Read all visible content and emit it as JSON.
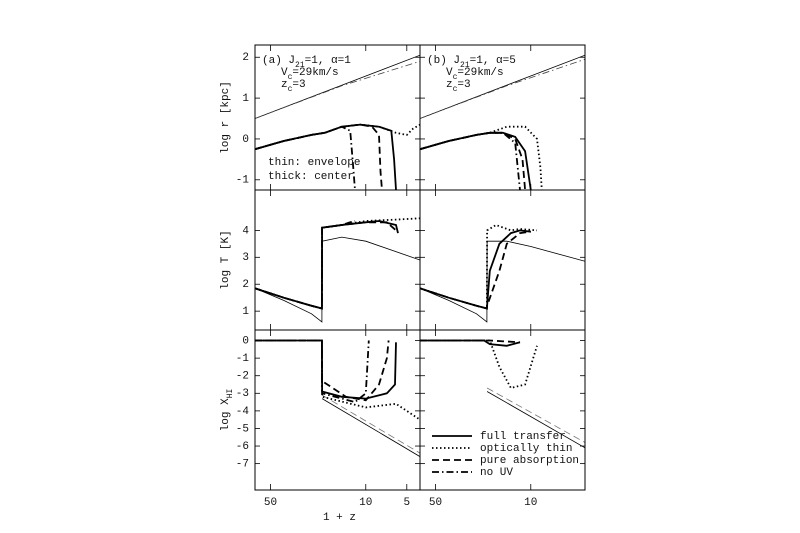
{
  "chart_data": [
    {
      "type": "line",
      "xscale": "log",
      "xlim": [
        65,
        4
      ],
      "ylim": [
        -1.25,
        2.3
      ],
      "yticks": [
        -1,
        0,
        1,
        2
      ],
      "ylabel": [
        "log r [kpc]"
      ],
      "annotations": [
        [
          "(a) J",
          {
            "sub": "21"
          },
          "=1, α=1"
        ],
        [
          "V",
          {
            "sub": "c"
          },
          "=29km/s"
        ],
        [
          "z",
          {
            "sub": "c"
          },
          "=3"
        ]
      ],
      "notes": [
        "thin: envelope",
        "thick: center"
      ],
      "series": [
        {
          "dash": "solid",
          "weight": "thin",
          "color": "#000000",
          "x": [
            65,
            4
          ],
          "values": [
            0.5,
            2.05
          ]
        },
        {
          "dash": "dashdot",
          "weight": "thin",
          "color": "#444444",
          "x": [
            65,
            15,
            4
          ],
          "values": [
            0.5,
            1.3,
            1.9
          ]
        },
        {
          "dash": "dotted",
          "weight": "thick",
          "color": "#000000",
          "x": [
            65,
            40,
            25,
            20,
            15,
            11,
            8,
            6,
            5,
            4.5,
            4
          ],
          "values": [
            -0.25,
            -0.05,
            0.1,
            0.15,
            0.3,
            0.35,
            0.3,
            0.15,
            0.1,
            0.25,
            0.35
          ]
        },
        {
          "dash": "dashed",
          "weight": "thick",
          "color": "#000000",
          "x": [
            65,
            40,
            25,
            20,
            15,
            11,
            9,
            8,
            7.8,
            7.6
          ],
          "values": [
            -0.25,
            -0.05,
            0.1,
            0.15,
            0.3,
            0.35,
            0.3,
            0.1,
            -0.8,
            -1.25
          ]
        },
        {
          "dash": "dashdot",
          "weight": "thick",
          "color": "#000000",
          "x": [
            65,
            40,
            25,
            20,
            15,
            13,
            12.5,
            12
          ],
          "values": [
            -0.25,
            -0.05,
            0.1,
            0.15,
            0.3,
            0.2,
            -0.5,
            -1.25
          ]
        },
        {
          "dash": "solid",
          "weight": "thick",
          "color": "#000000",
          "x": [
            65,
            40,
            25,
            20,
            15,
            11,
            8,
            6.5,
            6.2,
            6.0
          ],
          "values": [
            -0.25,
            -0.05,
            0.1,
            0.15,
            0.3,
            0.35,
            0.3,
            0.2,
            -0.5,
            -1.25
          ]
        }
      ]
    },
    {
      "type": "line",
      "xscale": "log",
      "xlim": [
        65,
        4
      ],
      "ylim": [
        -1.25,
        2.3
      ],
      "annotations": [
        [
          "(b) J",
          {
            "sub": "21"
          },
          "=1, α=5"
        ],
        [
          "V",
          {
            "sub": "c"
          },
          "=29km/s"
        ],
        [
          "z",
          {
            "sub": "c"
          },
          "=3"
        ]
      ],
      "series": [
        {
          "dash": "solid",
          "weight": "thin",
          "color": "#000000",
          "x": [
            65,
            4
          ],
          "values": [
            0.5,
            2.05
          ]
        },
        {
          "dash": "dashdot",
          "weight": "thin",
          "color": "#444444",
          "x": [
            65,
            15,
            4
          ],
          "values": [
            0.5,
            1.3,
            1.95
          ]
        },
        {
          "dash": "dotted",
          "weight": "thick",
          "color": "#000000",
          "x": [
            65,
            40,
            25,
            20,
            15,
            11,
            9,
            8.5,
            8.3
          ],
          "values": [
            -0.25,
            -0.05,
            0.1,
            0.15,
            0.3,
            0.3,
            0.0,
            -0.7,
            -1.25
          ]
        },
        {
          "dash": "dashed",
          "weight": "thick",
          "color": "#000000",
          "x": [
            65,
            40,
            25,
            20,
            16,
            13,
            11.5,
            11
          ],
          "values": [
            -0.25,
            -0.05,
            0.1,
            0.15,
            0.15,
            0.0,
            -0.5,
            -1.25
          ]
        },
        {
          "dash": "dashdot",
          "weight": "thick",
          "color": "#000000",
          "x": [
            65,
            40,
            25,
            20,
            16,
            13,
            12
          ],
          "values": [
            -0.25,
            -0.05,
            0.1,
            0.15,
            0.15,
            -0.1,
            -1.25
          ]
        },
        {
          "dash": "solid",
          "weight": "thick",
          "color": "#000000",
          "x": [
            65,
            40,
            25,
            20,
            16,
            13,
            11,
            10
          ],
          "values": [
            -0.25,
            -0.05,
            0.1,
            0.15,
            0.15,
            0.05,
            -0.3,
            -1.25
          ]
        }
      ]
    },
    {
      "type": "line",
      "xscale": "log",
      "xlim": [
        65,
        4
      ],
      "ylim": [
        0.3,
        5.5
      ],
      "yticks": [
        1,
        2,
        3,
        4
      ],
      "ylabel": [
        "log T [K]"
      ],
      "series": [
        {
          "dash": "solid",
          "weight": "thin",
          "color": "#000000",
          "x": [
            65,
            40,
            25,
            21,
            20.9,
            15,
            10,
            4
          ],
          "values": [
            1.85,
            1.4,
            0.9,
            0.6,
            3.6,
            3.75,
            3.6,
            2.9
          ]
        },
        {
          "dash": "dotted",
          "weight": "thick",
          "color": "#000000",
          "x": [
            65,
            40,
            25,
            21,
            20.9,
            15,
            10,
            6,
            4
          ],
          "values": [
            1.85,
            1.5,
            1.2,
            1.1,
            4.1,
            4.2,
            4.35,
            4.4,
            4.45
          ]
        },
        {
          "dash": "dashed",
          "weight": "thick",
          "color": "#000000",
          "x": [
            65,
            40,
            25,
            21,
            20.9,
            15,
            10,
            7,
            6
          ],
          "values": [
            1.85,
            1.5,
            1.2,
            1.1,
            4.1,
            4.2,
            4.3,
            4.3,
            4.0
          ]
        },
        {
          "dash": "dashdot",
          "weight": "thick",
          "color": "#000000",
          "x": [
            65,
            40,
            25,
            21,
            20.9,
            15,
            13,
            12
          ],
          "values": [
            1.85,
            1.5,
            1.2,
            1.1,
            4.1,
            4.2,
            4.3,
            4.35
          ]
        },
        {
          "dash": "solid",
          "weight": "thick",
          "color": "#000000",
          "x": [
            65,
            40,
            25,
            21,
            20.9,
            15,
            10,
            8,
            6,
            5.8
          ],
          "values": [
            1.85,
            1.5,
            1.2,
            1.1,
            4.1,
            4.2,
            4.3,
            4.35,
            4.2,
            3.9
          ]
        }
      ]
    },
    {
      "type": "line",
      "xscale": "log",
      "xlim": [
        65,
        4
      ],
      "ylim": [
        0.3,
        5.5
      ],
      "series": [
        {
          "dash": "solid",
          "weight": "thin",
          "color": "#000000",
          "x": [
            65,
            40,
            25,
            21,
            20.9,
            15,
            10,
            4
          ],
          "values": [
            1.85,
            1.4,
            0.9,
            0.6,
            3.6,
            3.6,
            3.4,
            2.85
          ]
        },
        {
          "dash": "dotted",
          "weight": "thick",
          "color": "#000000",
          "x": [
            65,
            40,
            25,
            21,
            20.9,
            18,
            14,
            12,
            9
          ],
          "values": [
            1.85,
            1.5,
            1.2,
            1.1,
            4.0,
            4.2,
            4.0,
            4.05,
            4.0
          ]
        },
        {
          "dash": "dashed",
          "weight": "thick",
          "color": "#000000",
          "x": [
            65,
            40,
            25,
            21,
            20.9,
            17,
            15,
            12,
            10
          ],
          "values": [
            1.85,
            1.5,
            1.2,
            1.1,
            1.2,
            2.5,
            3.5,
            3.9,
            3.95
          ]
        },
        {
          "dash": "solid",
          "weight": "thick",
          "color": "#000000",
          "x": [
            65,
            40,
            25,
            21,
            20,
            17,
            14,
            12,
            10
          ],
          "values": [
            1.85,
            1.5,
            1.2,
            1.1,
            2.5,
            3.5,
            3.9,
            4.0,
            3.95
          ]
        }
      ]
    },
    {
      "type": "line",
      "xscale": "log",
      "xlim": [
        65,
        4
      ],
      "ylim": [
        -8.5,
        0.6
      ],
      "yticks": [
        0,
        -1,
        -2,
        -3,
        -4,
        -5,
        -6,
        -7
      ],
      "xticks": [
        50,
        10,
        5
      ],
      "xlabel": "1 + z",
      "ylabel": [
        "log X",
        {
          "sub": "HI"
        }
      ],
      "series": [
        {
          "dash": "solid",
          "weight": "thin",
          "color": "#000000",
          "x": [
            20.9,
            4
          ],
          "values": [
            -3.3,
            -6.6
          ]
        },
        {
          "dash": "dashed",
          "weight": "thin",
          "color": "#777777",
          "x": [
            20.9,
            4
          ],
          "values": [
            -3.1,
            -6.4
          ]
        },
        {
          "dash": "dotted",
          "weight": "thick",
          "color": "#000000",
          "x": [
            65,
            21,
            20.9,
            10,
            6,
            5,
            4
          ],
          "values": [
            0,
            0,
            -3.2,
            -3.8,
            -3.6,
            -4.0,
            -4.5
          ]
        },
        {
          "dash": "dashed",
          "weight": "thick",
          "color": "#000000",
          "x": [
            65,
            21,
            20.9,
            14,
            10,
            8,
            7,
            6.8
          ],
          "values": [
            0,
            0,
            -2.3,
            -3.2,
            -3.4,
            -2.5,
            -1.0,
            0
          ]
        },
        {
          "dash": "dashdot",
          "weight": "thick",
          "color": "#000000",
          "x": [
            65,
            21,
            20.9,
            12,
            10,
            9.5
          ],
          "values": [
            0,
            0,
            -3.0,
            -3.5,
            -3.0,
            0
          ]
        },
        {
          "dash": "solid",
          "weight": "thick",
          "color": "#000000",
          "x": [
            65,
            21,
            20.9,
            15,
            10,
            7,
            6.1,
            6
          ],
          "values": [
            0,
            0,
            -2.9,
            -3.2,
            -3.3,
            -3.0,
            -2.5,
            -0.1
          ]
        }
      ]
    },
    {
      "type": "line",
      "xscale": "log",
      "xlim": [
        65,
        4
      ],
      "ylim": [
        -8.5,
        0.6
      ],
      "xticks": [
        50,
        10
      ],
      "legend": "lower left",
      "series": [
        {
          "name": "full transfer",
          "dash": "solid",
          "weight": "thick",
          "color": "#000000",
          "x": [
            65,
            22,
            20,
            15,
            12
          ],
          "values": [
            0,
            0,
            -0.2,
            -0.3,
            -0.1
          ]
        },
        {
          "name": "optically thin",
          "dash": "dotted",
          "weight": "thick",
          "color": "#000000",
          "x": [
            65,
            20,
            17,
            14,
            11,
            9
          ],
          "values": [
            0,
            0,
            -1.5,
            -2.7,
            -2.5,
            -0.3
          ]
        },
        {
          "name": "pure absorption",
          "dash": "dashed",
          "weight": "thick",
          "color": "#000000",
          "x": [
            65,
            20,
            12
          ],
          "values": [
            0,
            0,
            -0.1
          ]
        },
        {
          "name": "no UV",
          "dash": "dashdot",
          "weight": "thick",
          "color": "#000000",
          "x": [
            65,
            20
          ],
          "values": [
            0,
            0
          ]
        },
        {
          "dash": "solid",
          "weight": "thin",
          "color": "#000000",
          "x": [
            20.9,
            4
          ],
          "values": [
            -2.9,
            -6.1
          ]
        },
        {
          "dash": "dashed",
          "weight": "thin",
          "color": "#777777",
          "x": [
            20.9,
            4
          ],
          "values": [
            -2.7,
            -5.8
          ]
        }
      ]
    }
  ]
}
